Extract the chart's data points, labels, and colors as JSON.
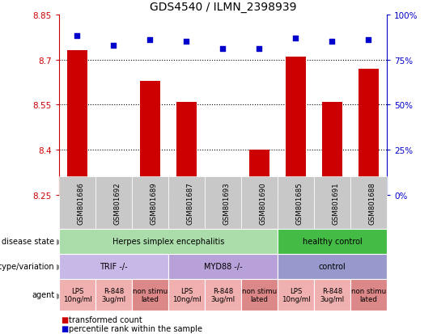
{
  "title": "GDS4540 / ILMN_2398939",
  "samples": [
    "GSM801686",
    "GSM801692",
    "GSM801689",
    "GSM801687",
    "GSM801693",
    "GSM801690",
    "GSM801685",
    "GSM801691",
    "GSM801688"
  ],
  "transformed_counts": [
    8.73,
    8.27,
    8.63,
    8.56,
    8.26,
    8.4,
    8.71,
    8.56,
    8.67
  ],
  "percentile_ranks": [
    88,
    83,
    86,
    85,
    81,
    81,
    87,
    85,
    86
  ],
  "ylim_left": [
    8.25,
    8.85
  ],
  "ylim_right": [
    0,
    100
  ],
  "yticks_left": [
    8.25,
    8.4,
    8.55,
    8.7,
    8.85
  ],
  "yticks_right": [
    0,
    25,
    50,
    75,
    100
  ],
  "bar_color": "#cc0000",
  "dot_color": "#0000cc",
  "bar_bottom": 8.25,
  "sample_box_color": "#c8c8c8",
  "disease_groups": [
    {
      "label": "Herpes simplex encephalitis",
      "start": 0,
      "end": 6,
      "color": "#aaddaa"
    },
    {
      "label": "healthy control",
      "start": 6,
      "end": 9,
      "color": "#44bb44"
    }
  ],
  "genotype_groups": [
    {
      "label": "TRIF -/-",
      "start": 0,
      "end": 3,
      "color": "#c8b8e8"
    },
    {
      "label": "MYD88 -/-",
      "start": 3,
      "end": 6,
      "color": "#b8a0d8"
    },
    {
      "label": "control",
      "start": 6,
      "end": 9,
      "color": "#9898cc"
    }
  ],
  "agent_groups": [
    {
      "label": "LPS\n10ng/ml",
      "start": 0,
      "end": 1,
      "color": "#f0b0b0"
    },
    {
      "label": "R-848\n3ug/ml",
      "start": 1,
      "end": 2,
      "color": "#f0b0b0"
    },
    {
      "label": "non stimu\nlated",
      "start": 2,
      "end": 3,
      "color": "#dd8888"
    },
    {
      "label": "LPS\n10ng/ml",
      "start": 3,
      "end": 4,
      "color": "#f0b0b0"
    },
    {
      "label": "R-848\n3ug/ml",
      "start": 4,
      "end": 5,
      "color": "#f0b0b0"
    },
    {
      "label": "non stimu\nlated",
      "start": 5,
      "end": 6,
      "color": "#dd8888"
    },
    {
      "label": "LPS\n10ng/ml",
      "start": 6,
      "end": 7,
      "color": "#f0b0b0"
    },
    {
      "label": "R-848\n3ug/ml",
      "start": 7,
      "end": 8,
      "color": "#f0b0b0"
    },
    {
      "label": "non stimu\nlated",
      "start": 8,
      "end": 9,
      "color": "#dd8888"
    }
  ],
  "row_labels": [
    "disease state",
    "genotype/variation",
    "agent"
  ],
  "legend_bar_label": "transformed count",
  "legend_dot_label": "percentile rank within the sample",
  "left_axis_color": "#cc0000",
  "right_axis_color": "#0000cc"
}
